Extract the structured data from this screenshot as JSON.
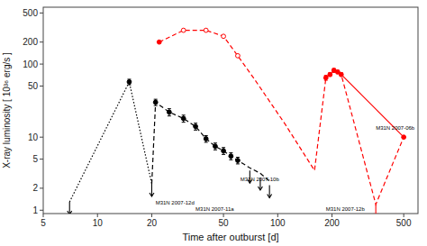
{
  "chart_data": {
    "type": "line",
    "xlabel": "Time after outburst [d]",
    "ylabel": "X-ray luminosity [ 10³⁶ erg/s ]",
    "log": true,
    "xlim": [
      5,
      600
    ],
    "ylim": [
      0.9,
      600
    ],
    "xticks": [
      5,
      10,
      20,
      50,
      100,
      200,
      500
    ],
    "yticks": [
      1,
      2,
      5,
      10,
      50,
      100,
      200,
      500
    ],
    "series": [
      {
        "type": "line",
        "color": "black",
        "line_style": "dotted",
        "x": [
          7,
          15,
          20
        ],
        "values": [
          1.3,
          57,
          2.3
        ]
      },
      {
        "type": "line",
        "color": "black",
        "line_style": "dashed",
        "x": [
          20,
          21,
          25,
          30,
          35,
          40,
          45,
          50,
          55,
          60,
          70,
          80,
          90
        ],
        "values": [
          2.3,
          30,
          22,
          18,
          14,
          9.5,
          7.5,
          6.5,
          5.5,
          4.8,
          3.8,
          3.2,
          2.5
        ]
      },
      {
        "type": "scatter",
        "color": "black",
        "marker": "circle",
        "x": [
          15,
          21,
          25,
          30,
          35,
          40,
          45,
          50,
          55,
          60
        ],
        "values": [
          57,
          30,
          22,
          18,
          14,
          9.5,
          7.5,
          6.5,
          5.5,
          4.8
        ],
        "errors": [
          5,
          3,
          2.5,
          2,
          1.5,
          1,
          0.8,
          0.7,
          0.6,
          0.5
        ]
      },
      {
        "type": "scatter",
        "color": "black",
        "marker": "arrow",
        "x": [
          7,
          20,
          70,
          80,
          90
        ],
        "values": [
          1.3,
          2.3,
          3.5,
          2.8,
          2.2
        ]
      },
      {
        "type": "line",
        "color": "red",
        "line_style": "dashed",
        "x": [
          22,
          30,
          40,
          50,
          60,
          75,
          110,
          160,
          185,
          195,
          205,
          215,
          225,
          350,
          500
        ],
        "values": [
          200,
          290,
          290,
          240,
          130,
          60,
          15,
          3.5,
          65,
          72,
          82,
          78,
          72,
          1.2,
          10
        ]
      },
      {
        "type": "scatter",
        "color": "red",
        "marker": "circle",
        "x": [
          22,
          500
        ],
        "values": [
          200,
          10
        ]
      },
      {
        "type": "scatter",
        "color": "red",
        "marker": "open-circle",
        "x": [
          30,
          40,
          50,
          60
        ],
        "values": [
          290,
          290,
          240,
          130
        ]
      },
      {
        "type": "scatter",
        "color": "red",
        "marker": "circle",
        "x": [
          185,
          195,
          205,
          215,
          225
        ],
        "values": [
          65,
          72,
          82,
          78,
          72
        ],
        "errors": [
          5,
          4,
          5,
          4,
          4
        ]
      },
      {
        "type": "scatter",
        "color": "red",
        "marker": "arrow",
        "x": [
          350
        ],
        "values": [
          1.2
        ]
      },
      {
        "type": "line",
        "color": "red",
        "line_style": "solid",
        "x": [
          225,
          500
        ],
        "values": [
          72,
          10
        ]
      }
    ],
    "annotations": [
      {
        "text": "M31N 2007-12d",
        "x": 21,
        "y": 1.15
      },
      {
        "text": "M31N 2007-11a",
        "x": 35,
        "y": 0.93
      },
      {
        "text": "M31N 2007-10b",
        "x": 62,
        "y": 2.4
      },
      {
        "text": "M31N 2007-12b",
        "x": 185,
        "y": 0.93
      },
      {
        "text": "M31N 2007-06b",
        "x": 350,
        "y": 12
      }
    ]
  }
}
